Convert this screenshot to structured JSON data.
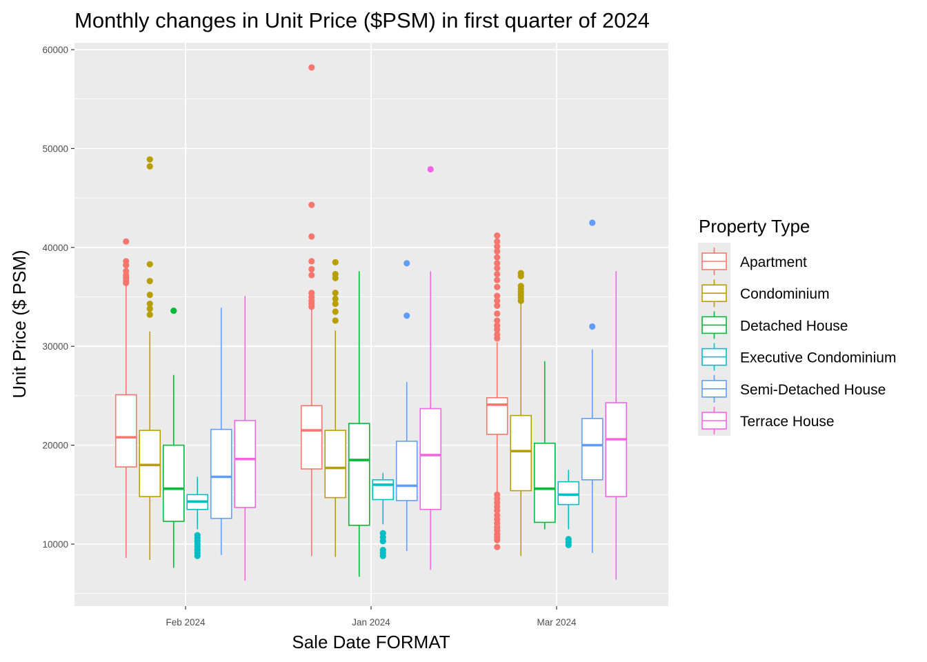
{
  "chart_data": {
    "type": "boxplot",
    "title": "Monthly changes in Unit Price ($PSM) in first quarter of 2024",
    "xlabel": "Sale Date FORMAT",
    "ylabel": "Unit Price ($ PSM)",
    "categories": [
      "Feb 2024",
      "Jan 2024",
      "Mar 2024"
    ],
    "ylim": [
      4500,
      61000
    ],
    "yticks": [
      10000,
      20000,
      30000,
      40000,
      50000,
      60000
    ],
    "ytick_labels": [
      "10000",
      "20000",
      "30000",
      "40000",
      "50000",
      "60000"
    ],
    "grid": true,
    "background": "#ebebeb",
    "legend": {
      "title": "Property Type",
      "position": "right"
    },
    "series": [
      {
        "name": "Apartment",
        "color": "#F8766D",
        "boxes": [
          {
            "category": "Feb 2024",
            "lower": 8600,
            "q1": 17800,
            "median": 20800,
            "q3": 25100,
            "upper": 36200,
            "outliers": [
              36400,
              36600,
              36900,
              37200,
              37600,
              38200,
              38600,
              40600
            ]
          },
          {
            "category": "Jan 2024",
            "lower": 8800,
            "q1": 17600,
            "median": 21500,
            "q3": 24000,
            "upper": 33700,
            "outliers": [
              34000,
              34300,
              34600,
              35000,
              35400,
              37200,
              37800,
              38600,
              41100,
              44300,
              58200
            ]
          },
          {
            "category": "Mar 2024",
            "lower": 15300,
            "q1": 21100,
            "median": 24100,
            "q3": 24800,
            "upper": 30400,
            "outliers": [
              9700,
              10400,
              10700,
              11000,
              11400,
              11700,
              12100,
              12500,
              12900,
              13400,
              13800,
              14200,
              14600,
              15000,
              30800,
              31200,
              31700,
              32100,
              32600,
              33300,
              34100,
              34600,
              35100,
              36000,
              36700,
              37300,
              37900,
              38400,
              39000,
              39600,
              40100,
              40600,
              41200
            ]
          }
        ]
      },
      {
        "name": "Condominium",
        "color": "#B79F00",
        "boxes": [
          {
            "category": "Feb 2024",
            "lower": 8400,
            "q1": 14800,
            "median": 18000,
            "q3": 21500,
            "upper": 31500,
            "outliers": [
              33200,
              33800,
              34300,
              35200,
              36600,
              38300,
              48200,
              48900
            ]
          },
          {
            "category": "Jan 2024",
            "lower": 8700,
            "q1": 14700,
            "median": 17700,
            "q3": 21500,
            "upper": 31600,
            "outliers": [
              32600,
              33500,
              34300,
              34800,
              35400,
              36900,
              37300,
              38500
            ]
          },
          {
            "category": "Mar 2024",
            "lower": 8800,
            "q1": 15400,
            "median": 19400,
            "q3": 23000,
            "upper": 34300,
            "outliers": [
              34600,
              34900,
              35200,
              35500,
              35800,
              36100,
              37100,
              37400
            ]
          }
        ]
      },
      {
        "name": "Detached House",
        "color": "#00BA38",
        "boxes": [
          {
            "category": "Feb 2024",
            "lower": 7600,
            "q1": 12300,
            "median": 15600,
            "q3": 20000,
            "upper": 27100,
            "outliers": [
              33600
            ]
          },
          {
            "category": "Jan 2024",
            "lower": 6700,
            "q1": 11900,
            "median": 18500,
            "q3": 22200,
            "upper": 37600,
            "outliers": []
          },
          {
            "category": "Mar 2024",
            "lower": 11500,
            "q1": 12200,
            "median": 15600,
            "q3": 20200,
            "upper": 28500,
            "outliers": []
          }
        ]
      },
      {
        "name": "Executive Condominium",
        "color": "#00BFC4",
        "boxes": [
          {
            "category": "Feb 2024",
            "lower": 11500,
            "q1": 13500,
            "median": 14300,
            "q3": 15000,
            "upper": 16800,
            "outliers": [
              8800,
              9100,
              9400,
              9700,
              10000,
              10300,
              10600,
              10900
            ]
          },
          {
            "category": "Jan 2024",
            "lower": 12000,
            "q1": 14500,
            "median": 16000,
            "q3": 16500,
            "upper": 17200,
            "outliers": [
              8800,
              9100,
              9400,
              10300,
              10700,
              11100
            ]
          },
          {
            "category": "Mar 2024",
            "lower": 11500,
            "q1": 14000,
            "median": 15000,
            "q3": 16300,
            "upper": 17500,
            "outliers": [
              9900,
              10200,
              10500
            ]
          }
        ]
      },
      {
        "name": "Semi-Detached House",
        "color": "#619CFF",
        "boxes": [
          {
            "category": "Feb 2024",
            "lower": 8900,
            "q1": 12600,
            "median": 16800,
            "q3": 21600,
            "upper": 33900,
            "outliers": []
          },
          {
            "category": "Jan 2024",
            "lower": 9300,
            "q1": 14400,
            "median": 15900,
            "q3": 20400,
            "upper": 26400,
            "outliers": [
              33100,
              38400
            ]
          },
          {
            "category": "Mar 2024",
            "lower": 9100,
            "q1": 16500,
            "median": 20000,
            "q3": 22700,
            "upper": 29700,
            "outliers": [
              32000,
              42500
            ]
          }
        ]
      },
      {
        "name": "Terrace House",
        "color": "#F564E3",
        "boxes": [
          {
            "category": "Feb 2024",
            "lower": 6300,
            "q1": 13700,
            "median": 18600,
            "q3": 22500,
            "upper": 35100,
            "outliers": []
          },
          {
            "category": "Jan 2024",
            "lower": 7400,
            "q1": 13500,
            "median": 19000,
            "q3": 23700,
            "upper": 37600,
            "outliers": [
              47900
            ]
          },
          {
            "category": "Mar 2024",
            "lower": 6400,
            "q1": 14800,
            "median": 20600,
            "q3": 24300,
            "upper": 37600,
            "outliers": []
          }
        ]
      }
    ]
  }
}
